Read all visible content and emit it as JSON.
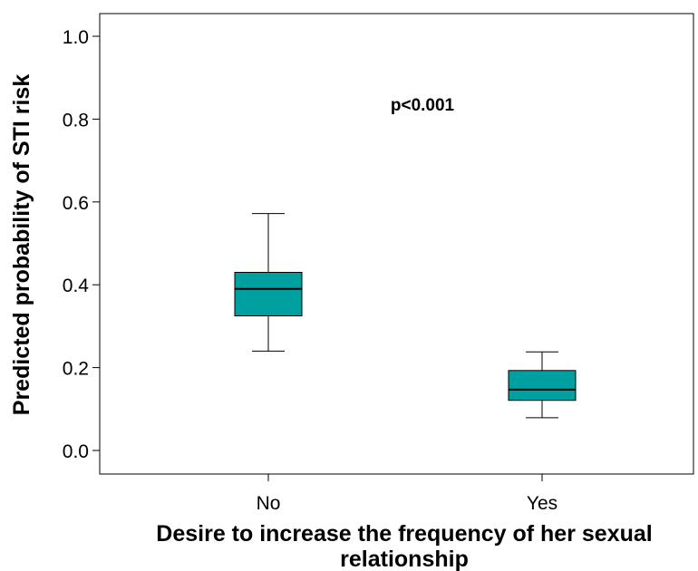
{
  "chart_data": {
    "type": "boxplot",
    "xlabel_lines": [
      "Desire to increase the frequency of her sexual",
      "relationship"
    ],
    "ylabel": "Predicted probability of STI risk",
    "ylim": [
      -0.06,
      1.05
    ],
    "yticks": [
      0.0,
      0.2,
      0.4,
      0.6,
      0.8,
      1.0
    ],
    "ytick_labels": [
      "0.0",
      "0.2",
      "0.4",
      "0.6",
      "0.8",
      "1.0"
    ],
    "categories": [
      "No",
      "Yes"
    ],
    "boxes": [
      {
        "category": "No",
        "min": 0.24,
        "q1": 0.325,
        "median": 0.39,
        "q3": 0.43,
        "max": 0.572
      },
      {
        "category": "Yes",
        "min": 0.079,
        "q1": 0.121,
        "median": 0.147,
        "q3": 0.193,
        "max": 0.238
      }
    ],
    "annotation": "p<0.001",
    "box_fill": "#00a0a0",
    "grid": false
  }
}
